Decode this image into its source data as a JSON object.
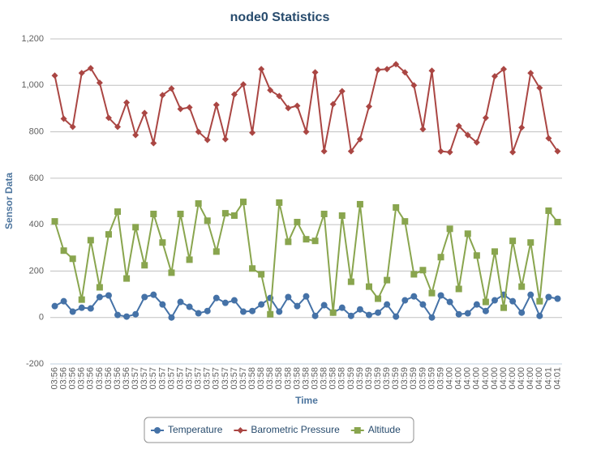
{
  "chart_data": {
    "type": "line",
    "title": "node0 Statistics",
    "x_label": "Time",
    "y_label": "Sensor Data",
    "categories": [
      "03:56",
      "03:56",
      "03:56",
      "03:56",
      "03:56",
      "03:56",
      "03:56",
      "03:56",
      "03:56",
      "03:57",
      "03:57",
      "03:57",
      "03:57",
      "03:57",
      "03:57",
      "03:57",
      "03:57",
      "03:57",
      "03:57",
      "03:57",
      "03:57",
      "03:57",
      "03:58",
      "03:58",
      "03:58",
      "03:58",
      "03:58",
      "03:58",
      "03:58",
      "03:58",
      "03:58",
      "03:58",
      "03:58",
      "03:59",
      "03:59",
      "03:59",
      "03:59",
      "03:59",
      "03:59",
      "03:59",
      "03:59",
      "03:59",
      "03:59",
      "03:59",
      "04:00",
      "04:00",
      "04:00",
      "04:00",
      "04:00",
      "04:00",
      "04:00",
      "04:00",
      "04:00",
      "04:00",
      "04:00",
      "04:01",
      "04:01"
    ],
    "series": [
      {
        "name": "Temperature",
        "color": "#4572A7",
        "marker": "circle",
        "values": [
          49,
          70,
          25,
          42,
          39,
          88,
          95,
          11,
          4,
          14,
          88,
          98,
          56,
          0,
          67,
          46,
          18,
          28,
          84,
          63,
          74,
          25,
          28,
          56,
          84,
          25,
          88,
          49,
          91,
          7,
          53,
          21,
          42,
          7,
          35,
          11,
          21,
          56,
          4,
          74,
          91,
          56,
          0,
          95,
          67,
          14,
          18,
          56,
          28,
          74,
          98,
          70,
          21,
          98,
          7,
          88,
          81
        ]
      },
      {
        "name": "Barometric Pressure",
        "color": "#AA4643",
        "marker": "diamond",
        "values": [
          1042,
          856,
          821,
          1053,
          1074,
          1011,
          860,
          821,
          926,
          786,
          881,
          751,
          958,
          986,
          898,
          905,
          800,
          765,
          916,
          768,
          961,
          1004,
          796,
          1070,
          979,
          954,
          902,
          912,
          800,
          1056,
          716,
          919,
          975,
          716,
          768,
          909,
          1067,
          1070,
          1091,
          1056,
          1000,
          811,
          1063,
          716,
          712,
          825,
          786,
          754,
          860,
          1039,
          1070,
          712,
          818,
          1053,
          989,
          772,
          716
        ]
      },
      {
        "name": "Altitude",
        "color": "#89A54E",
        "marker": "square",
        "values": [
          414,
          288,
          253,
          77,
          333,
          130,
          358,
          456,
          168,
          389,
          225,
          446,
          323,
          193,
          446,
          249,
          491,
          417,
          284,
          449,
          439,
          498,
          211,
          186,
          14,
          495,
          326,
          411,
          337,
          330,
          446,
          21,
          439,
          154,
          488,
          133,
          81,
          161,
          474,
          414,
          186,
          204,
          105,
          260,
          382,
          123,
          361,
          267,
          67,
          284,
          42,
          330,
          133,
          323,
          70,
          460,
          411
        ]
      }
    ],
    "ylim": [
      -200,
      1200
    ],
    "yticks": [
      -200,
      0,
      200,
      400,
      600,
      {
        "value": 800,
        "label": "800"
      },
      {
        "value": 1000,
        "label": "1,000"
      },
      {
        "value": 1200,
        "label": "1,200"
      }
    ],
    "grid": true,
    "legend": "bottom"
  }
}
